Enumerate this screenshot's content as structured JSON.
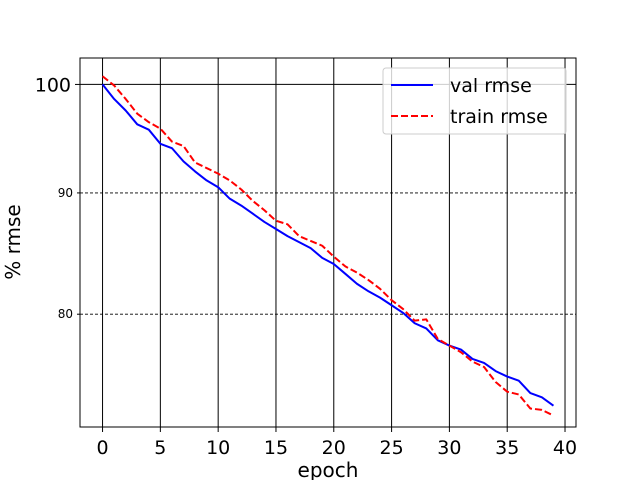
{
  "chart_data": {
    "type": "line",
    "title": "",
    "xlabel": "epoch",
    "ylabel": "% rmse",
    "xlim": [
      -1.95,
      40.95
    ],
    "ylim": [
      71.7,
      102.6
    ],
    "y_scale": "log",
    "x_ticks": [
      0,
      5,
      10,
      15,
      20,
      25,
      30,
      35,
      40
    ],
    "x_tick_labels": [
      "0",
      "5",
      "10",
      "15",
      "20",
      "25",
      "30",
      "35",
      "40"
    ],
    "y_major_ticks": [
      100
    ],
    "y_major_tick_labels": [
      "100"
    ],
    "y_minor_ticks": [
      80,
      90
    ],
    "y_minor_tick_labels": [
      "80",
      "90"
    ],
    "grid": {
      "x": "major solid",
      "y_major": "solid",
      "y_minor": "dashed"
    },
    "legend_position": "top-right",
    "x": [
      0,
      1,
      2,
      3,
      4,
      5,
      6,
      7,
      8,
      9,
      10,
      11,
      12,
      13,
      14,
      15,
      16,
      17,
      18,
      19,
      20,
      21,
      22,
      23,
      24,
      25,
      26,
      27,
      28,
      29,
      30,
      31,
      32,
      33,
      34,
      35,
      36,
      37,
      38,
      39
    ],
    "series": [
      {
        "name": "val rmse",
        "color": "#0000ff",
        "line_style": "solid",
        "values": [
          100.0,
          98.6,
          97.5,
          96.2,
          95.7,
          94.4,
          94.0,
          92.8,
          91.9,
          91.1,
          90.5,
          89.5,
          88.9,
          88.2,
          87.5,
          86.9,
          86.3,
          85.8,
          85.3,
          84.5,
          84.0,
          83.2,
          82.4,
          81.8,
          81.3,
          80.7,
          80.1,
          79.3,
          78.9,
          78.0,
          77.6,
          77.3,
          76.6,
          76.3,
          75.7,
          75.3,
          75.0,
          74.1,
          73.8,
          73.2
        ]
      },
      {
        "name": "train rmse",
        "color": "#ff0000",
        "line_style": "dashed",
        "values": [
          100.8,
          99.9,
          98.6,
          97.2,
          96.4,
          95.8,
          94.6,
          94.2,
          92.7,
          92.2,
          91.7,
          91.1,
          90.3,
          89.3,
          88.5,
          87.6,
          87.3,
          86.3,
          85.9,
          85.5,
          84.6,
          83.8,
          83.3,
          82.7,
          82.0,
          81.1,
          80.4,
          79.5,
          79.6,
          78.1,
          77.6,
          77.1,
          76.4,
          76.0,
          74.9,
          74.2,
          74.0,
          73.0,
          72.9,
          72.5
        ]
      }
    ]
  }
}
